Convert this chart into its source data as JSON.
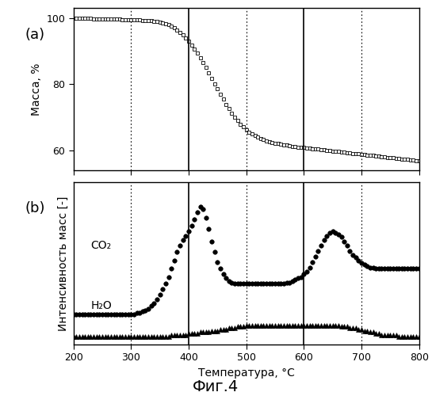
{
  "title_bottom": "Фиг.4",
  "xlabel": "Температура, °C",
  "ylabel_a": "Масса, %",
  "ylabel_b": "Интенсивность масс [-]",
  "label_a": "(a)",
  "label_b": "(b)",
  "xmin": 200,
  "xmax": 800,
  "dotted_lines": [
    300,
    500,
    700
  ],
  "solid_lines": [
    400,
    600
  ],
  "tga_x": [
    200,
    205,
    210,
    215,
    220,
    225,
    230,
    235,
    240,
    245,
    250,
    255,
    260,
    265,
    270,
    275,
    280,
    285,
    290,
    295,
    300,
    305,
    310,
    315,
    320,
    325,
    330,
    335,
    340,
    345,
    350,
    355,
    360,
    365,
    370,
    375,
    380,
    385,
    390,
    395,
    400,
    405,
    410,
    415,
    420,
    425,
    430,
    435,
    440,
    445,
    450,
    455,
    460,
    465,
    470,
    475,
    480,
    485,
    490,
    495,
    500,
    505,
    510,
    515,
    520,
    525,
    530,
    535,
    540,
    545,
    550,
    555,
    560,
    565,
    570,
    575,
    580,
    585,
    590,
    595,
    600,
    605,
    610,
    615,
    620,
    625,
    630,
    635,
    640,
    645,
    650,
    655,
    660,
    665,
    670,
    675,
    680,
    685,
    690,
    695,
    700,
    705,
    710,
    715,
    720,
    725,
    730,
    735,
    740,
    745,
    750,
    755,
    760,
    765,
    770,
    775,
    780,
    785,
    790,
    795,
    800
  ],
  "tga_y": [
    99.8,
    99.8,
    99.8,
    99.8,
    99.8,
    99.8,
    99.8,
    99.7,
    99.7,
    99.7,
    99.7,
    99.7,
    99.7,
    99.6,
    99.6,
    99.6,
    99.6,
    99.5,
    99.5,
    99.5,
    99.5,
    99.4,
    99.4,
    99.4,
    99.3,
    99.3,
    99.2,
    99.1,
    99.0,
    98.9,
    98.7,
    98.5,
    98.2,
    97.9,
    97.5,
    97.0,
    96.4,
    95.7,
    94.9,
    94.0,
    93.0,
    91.9,
    90.7,
    89.4,
    88.0,
    86.5,
    85.0,
    83.4,
    81.8,
    80.2,
    78.6,
    77.0,
    75.5,
    74.0,
    72.6,
    71.3,
    70.1,
    69.0,
    68.0,
    67.1,
    66.3,
    65.6,
    65.0,
    64.5,
    64.0,
    63.6,
    63.3,
    63.0,
    62.7,
    62.5,
    62.3,
    62.1,
    61.9,
    61.8,
    61.6,
    61.5,
    61.3,
    61.2,
    61.1,
    61.0,
    60.9,
    60.8,
    60.7,
    60.6,
    60.5,
    60.4,
    60.3,
    60.2,
    60.1,
    60.0,
    59.9,
    59.8,
    59.7,
    59.6,
    59.5,
    59.4,
    59.3,
    59.2,
    59.1,
    59.0,
    58.9,
    58.8,
    58.7,
    58.6,
    58.5,
    58.4,
    58.3,
    58.2,
    58.1,
    58.0,
    57.9,
    57.8,
    57.7,
    57.6,
    57.5,
    57.4,
    57.3,
    57.2,
    57.1,
    57.0,
    56.9
  ],
  "co2_x": [
    200,
    205,
    210,
    215,
    220,
    225,
    230,
    235,
    240,
    245,
    250,
    255,
    260,
    265,
    270,
    275,
    280,
    285,
    290,
    295,
    300,
    305,
    310,
    315,
    320,
    325,
    330,
    335,
    340,
    345,
    350,
    355,
    360,
    365,
    370,
    375,
    380,
    385,
    390,
    395,
    400,
    405,
    410,
    415,
    420,
    425,
    430,
    435,
    440,
    445,
    450,
    455,
    460,
    465,
    470,
    475,
    480,
    485,
    490,
    495,
    500,
    505,
    510,
    515,
    520,
    525,
    530,
    535,
    540,
    545,
    550,
    555,
    560,
    565,
    570,
    575,
    580,
    585,
    590,
    595,
    600,
    605,
    610,
    615,
    620,
    625,
    630,
    635,
    640,
    645,
    650,
    655,
    660,
    665,
    670,
    675,
    680,
    685,
    690,
    695,
    700,
    705,
    710,
    715,
    720,
    725,
    730,
    735,
    740,
    745,
    750,
    755,
    760,
    765,
    770,
    775,
    780,
    785,
    790,
    795,
    800
  ],
  "co2_y": [
    0.22,
    0.22,
    0.22,
    0.22,
    0.22,
    0.22,
    0.22,
    0.22,
    0.22,
    0.22,
    0.22,
    0.22,
    0.22,
    0.22,
    0.22,
    0.22,
    0.22,
    0.22,
    0.22,
    0.22,
    0.22,
    0.22,
    0.23,
    0.23,
    0.24,
    0.25,
    0.26,
    0.28,
    0.3,
    0.33,
    0.36,
    0.4,
    0.44,
    0.49,
    0.55,
    0.61,
    0.67,
    0.72,
    0.76,
    0.79,
    0.82,
    0.86,
    0.91,
    0.96,
    1.0,
    0.98,
    0.92,
    0.84,
    0.75,
    0.67,
    0.6,
    0.55,
    0.51,
    0.48,
    0.46,
    0.45,
    0.44,
    0.44,
    0.44,
    0.44,
    0.44,
    0.44,
    0.44,
    0.44,
    0.44,
    0.44,
    0.44,
    0.44,
    0.44,
    0.44,
    0.44,
    0.44,
    0.44,
    0.44,
    0.45,
    0.45,
    0.46,
    0.47,
    0.48,
    0.49,
    0.51,
    0.53,
    0.56,
    0.6,
    0.64,
    0.68,
    0.72,
    0.76,
    0.79,
    0.81,
    0.82,
    0.81,
    0.8,
    0.78,
    0.75,
    0.72,
    0.68,
    0.65,
    0.63,
    0.61,
    0.59,
    0.58,
    0.57,
    0.56,
    0.56,
    0.55,
    0.55,
    0.55,
    0.55,
    0.55,
    0.55,
    0.55,
    0.55,
    0.55,
    0.55,
    0.55,
    0.55,
    0.55,
    0.55,
    0.55,
    0.55
  ],
  "h2o_x": [
    200,
    205,
    210,
    215,
    220,
    225,
    230,
    235,
    240,
    245,
    250,
    255,
    260,
    265,
    270,
    275,
    280,
    285,
    290,
    295,
    300,
    305,
    310,
    315,
    320,
    325,
    330,
    335,
    340,
    345,
    350,
    355,
    360,
    365,
    370,
    375,
    380,
    385,
    390,
    395,
    400,
    405,
    410,
    415,
    420,
    425,
    430,
    435,
    440,
    445,
    450,
    455,
    460,
    465,
    470,
    475,
    480,
    485,
    490,
    495,
    500,
    505,
    510,
    515,
    520,
    525,
    530,
    535,
    540,
    545,
    550,
    555,
    560,
    565,
    570,
    575,
    580,
    585,
    590,
    595,
    600,
    605,
    610,
    615,
    620,
    625,
    630,
    635,
    640,
    645,
    650,
    655,
    660,
    665,
    670,
    675,
    680,
    685,
    690,
    695,
    700,
    705,
    710,
    715,
    720,
    725,
    730,
    735,
    740,
    745,
    750,
    755,
    760,
    765,
    770,
    775,
    780,
    785,
    790,
    795,
    800
  ],
  "h2o_y": [
    0.06,
    0.06,
    0.06,
    0.06,
    0.06,
    0.06,
    0.06,
    0.06,
    0.06,
    0.06,
    0.06,
    0.06,
    0.06,
    0.06,
    0.06,
    0.06,
    0.06,
    0.06,
    0.06,
    0.06,
    0.06,
    0.06,
    0.06,
    0.06,
    0.06,
    0.06,
    0.06,
    0.06,
    0.06,
    0.06,
    0.06,
    0.06,
    0.06,
    0.06,
    0.07,
    0.07,
    0.07,
    0.07,
    0.07,
    0.07,
    0.08,
    0.08,
    0.08,
    0.08,
    0.09,
    0.09,
    0.09,
    0.09,
    0.1,
    0.1,
    0.1,
    0.11,
    0.11,
    0.11,
    0.12,
    0.12,
    0.12,
    0.13,
    0.13,
    0.13,
    0.14,
    0.14,
    0.14,
    0.14,
    0.14,
    0.14,
    0.14,
    0.14,
    0.14,
    0.14,
    0.14,
    0.14,
    0.14,
    0.14,
    0.14,
    0.14,
    0.14,
    0.14,
    0.14,
    0.14,
    0.14,
    0.14,
    0.14,
    0.14,
    0.14,
    0.14,
    0.14,
    0.14,
    0.14,
    0.14,
    0.14,
    0.14,
    0.14,
    0.13,
    0.13,
    0.13,
    0.12,
    0.12,
    0.12,
    0.11,
    0.11,
    0.1,
    0.1,
    0.09,
    0.09,
    0.08,
    0.08,
    0.07,
    0.07,
    0.07,
    0.07,
    0.07,
    0.07,
    0.06,
    0.06,
    0.06,
    0.06,
    0.06,
    0.06,
    0.06,
    0.06
  ],
  "co2_label": "CO₂",
  "h2o_label": "H₂O",
  "background_color": "#ffffff"
}
